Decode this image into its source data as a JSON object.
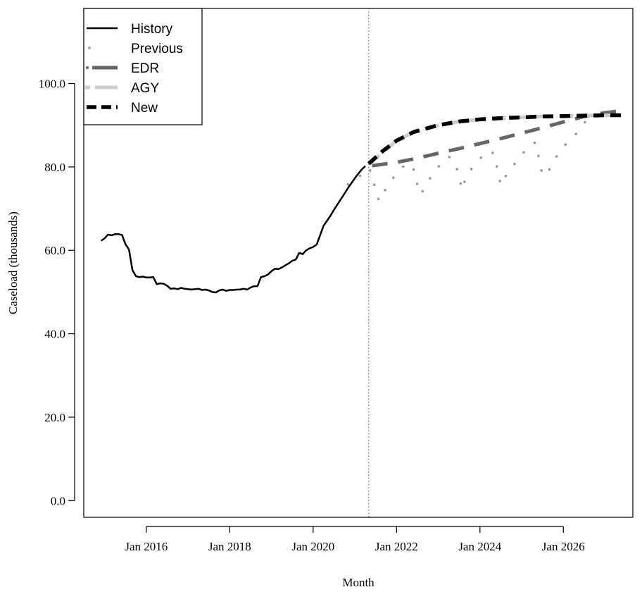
{
  "chart_data": {
    "type": "line",
    "xlabel": "Month",
    "ylabel": "Caseload (thousands)",
    "xlim": [
      "2014-07",
      "2027-09"
    ],
    "ylim": [
      -4,
      118
    ],
    "x_ticks": [
      {
        "date": "2016-01",
        "label": "Jan 2016"
      },
      {
        "date": "2018-01",
        "label": "Jan 2018"
      },
      {
        "date": "2020-01",
        "label": "Jan 2020"
      },
      {
        "date": "2022-01",
        "label": "Jan 2022"
      },
      {
        "date": "2024-01",
        "label": "Jan 2024"
      },
      {
        "date": "2026-01",
        "label": "Jan 2026"
      }
    ],
    "y_ticks": [
      {
        "value": 0,
        "label": "0.0"
      },
      {
        "value": 20,
        "label": "20.0"
      },
      {
        "value": 40,
        "label": "40.0"
      },
      {
        "value": 60,
        "label": "60.0"
      },
      {
        "value": 80,
        "label": "80.0"
      },
      {
        "value": 100,
        "label": "100.0"
      }
    ],
    "reference_line": {
      "x": "2021-05",
      "style": "dotted"
    },
    "legend": {
      "placement": "top-left"
    },
    "series": [
      {
        "name": "History",
        "style": "solid",
        "color": "#000000",
        "points": [
          [
            "2014-12",
            62.3
          ],
          [
            "2015-01",
            62.9
          ],
          [
            "2015-02",
            63.8
          ],
          [
            "2015-03",
            63.6
          ],
          [
            "2015-04",
            63.9
          ],
          [
            "2015-05",
            63.9
          ],
          [
            "2015-06",
            63.7
          ],
          [
            "2015-07",
            61.5
          ],
          [
            "2015-08",
            60.2
          ],
          [
            "2015-09",
            55.3
          ],
          [
            "2015-10",
            53.8
          ],
          [
            "2015-11",
            53.6
          ],
          [
            "2015-12",
            53.7
          ],
          [
            "2016-01",
            53.5
          ],
          [
            "2016-02",
            53.5
          ],
          [
            "2016-03",
            53.6
          ],
          [
            "2016-04",
            51.9
          ],
          [
            "2016-05",
            52.1
          ],
          [
            "2016-06",
            52.0
          ],
          [
            "2016-07",
            51.5
          ],
          [
            "2016-08",
            50.8
          ],
          [
            "2016-09",
            50.9
          ],
          [
            "2016-10",
            50.7
          ],
          [
            "2016-11",
            51.0
          ],
          [
            "2016-12",
            50.8
          ],
          [
            "2017-01",
            50.7
          ],
          [
            "2017-02",
            50.6
          ],
          [
            "2017-03",
            50.7
          ],
          [
            "2017-04",
            50.8
          ],
          [
            "2017-05",
            50.5
          ],
          [
            "2017-06",
            50.6
          ],
          [
            "2017-07",
            50.4
          ],
          [
            "2017-08",
            50.0
          ],
          [
            "2017-09",
            49.9
          ],
          [
            "2017-10",
            50.4
          ],
          [
            "2017-11",
            50.6
          ],
          [
            "2017-12",
            50.3
          ],
          [
            "2018-01",
            50.5
          ],
          [
            "2018-02",
            50.5
          ],
          [
            "2018-03",
            50.6
          ],
          [
            "2018-04",
            50.6
          ],
          [
            "2018-05",
            50.8
          ],
          [
            "2018-06",
            50.6
          ],
          [
            "2018-07",
            51.1
          ],
          [
            "2018-08",
            51.4
          ],
          [
            "2018-09",
            51.4
          ],
          [
            "2018-10",
            53.6
          ],
          [
            "2018-11",
            53.8
          ],
          [
            "2018-12",
            54.2
          ],
          [
            "2019-01",
            55.0
          ],
          [
            "2019-02",
            55.6
          ],
          [
            "2019-03",
            55.5
          ],
          [
            "2019-04",
            55.9
          ],
          [
            "2019-05",
            56.4
          ],
          [
            "2019-06",
            56.9
          ],
          [
            "2019-07",
            57.5
          ],
          [
            "2019-08",
            57.8
          ],
          [
            "2019-09",
            59.4
          ],
          [
            "2019-10",
            59.1
          ],
          [
            "2019-11",
            60.0
          ],
          [
            "2019-12",
            60.5
          ],
          [
            "2020-01",
            60.8
          ],
          [
            "2020-02",
            61.4
          ],
          [
            "2020-03",
            63.6
          ],
          [
            "2020-04",
            65.9
          ],
          [
            "2020-05",
            67.1
          ],
          [
            "2020-06",
            68.3
          ],
          [
            "2020-07",
            69.7
          ],
          [
            "2020-08",
            71.0
          ],
          [
            "2020-09",
            72.3
          ],
          [
            "2020-10",
            73.6
          ],
          [
            "2020-11",
            74.9
          ],
          [
            "2020-12",
            76.1
          ],
          [
            "2021-01",
            77.3
          ],
          [
            "2021-02",
            78.4
          ],
          [
            "2021-03",
            79.4
          ],
          [
            "2021-04",
            80.2
          ]
        ]
      },
      {
        "name": "Previous",
        "style": "dotted",
        "color": "#999999",
        "points": [
          [
            "2020-11",
            75.8
          ],
          [
            "2021-02",
            77.5
          ],
          [
            "2021-05",
            79.8
          ],
          [
            "2021-06",
            78.1
          ],
          [
            "2021-07",
            74.2
          ],
          [
            "2021-08",
            71.8
          ],
          [
            "2021-10",
            74.9
          ],
          [
            "2022-01",
            78.5
          ],
          [
            "2022-04",
            81.0
          ],
          [
            "2022-06",
            79.3
          ],
          [
            "2022-07",
            75.8
          ],
          [
            "2022-08",
            73.4
          ],
          [
            "2022-10",
            76.5
          ],
          [
            "2023-01",
            80.0
          ],
          [
            "2023-04",
            82.5
          ],
          [
            "2023-06",
            81.0
          ],
          [
            "2023-07",
            77.3
          ],
          [
            "2023-08",
            74.5
          ],
          [
            "2023-09",
            77.9
          ],
          [
            "2023-12",
            81.0
          ],
          [
            "2024-03",
            83.8
          ],
          [
            "2024-05",
            83.3
          ],
          [
            "2024-06",
            79.4
          ],
          [
            "2024-07",
            75.6
          ],
          [
            "2024-09",
            78.7
          ],
          [
            "2024-12",
            81.8
          ],
          [
            "2025-03",
            85.0
          ],
          [
            "2025-05",
            85.9
          ],
          [
            "2025-06",
            82.0
          ],
          [
            "2025-07",
            77.9
          ],
          [
            "2025-08",
            78.3
          ],
          [
            "2025-09",
            79.4
          ],
          [
            "2025-11",
            82.5
          ],
          [
            "2026-02",
            85.8
          ],
          [
            "2026-05",
            88.2
          ],
          [
            "2026-08",
            91.6
          ],
          [
            "2026-11",
            92.4
          ],
          [
            "2027-02",
            92.9
          ]
        ]
      },
      {
        "name": "EDR",
        "style": "dashed",
        "color": "#666666",
        "points": [
          [
            "2021-06",
            80.3
          ],
          [
            "2022-01",
            81.1
          ],
          [
            "2022-07",
            82.1
          ],
          [
            "2023-01",
            83.3
          ],
          [
            "2023-07",
            84.4
          ],
          [
            "2024-01",
            85.6
          ],
          [
            "2024-07",
            86.8
          ],
          [
            "2025-01",
            88.1
          ],
          [
            "2025-07",
            89.4
          ],
          [
            "2026-01",
            90.8
          ],
          [
            "2026-07",
            92.1
          ],
          [
            "2027-01",
            93.0
          ],
          [
            "2027-06",
            93.5
          ]
        ]
      },
      {
        "name": "AGY",
        "style": "dashed",
        "color": "#cccccc",
        "points": [
          [
            "2021-05",
            80.6
          ],
          [
            "2021-09",
            83.5
          ],
          [
            "2022-01",
            86.3
          ],
          [
            "2022-06",
            88.4
          ],
          [
            "2023-01",
            90.0
          ],
          [
            "2023-07",
            90.9
          ],
          [
            "2024-01",
            91.4
          ],
          [
            "2024-07",
            91.7
          ],
          [
            "2025-01",
            91.9
          ],
          [
            "2025-07",
            92.1
          ],
          [
            "2026-01",
            92.2
          ],
          [
            "2026-07",
            92.3
          ],
          [
            "2027-01",
            92.4
          ],
          [
            "2027-06",
            92.4
          ]
        ]
      },
      {
        "name": "New",
        "style": "dashed",
        "color": "#000000",
        "points": [
          [
            "2021-05",
            80.8
          ],
          [
            "2021-09",
            83.8
          ],
          [
            "2022-01",
            86.3
          ],
          [
            "2022-06",
            88.4
          ],
          [
            "2023-01",
            90.0
          ],
          [
            "2023-07",
            90.9
          ],
          [
            "2024-01",
            91.4
          ],
          [
            "2024-07",
            91.7
          ],
          [
            "2025-01",
            91.9
          ],
          [
            "2025-07",
            92.1
          ],
          [
            "2026-01",
            92.2
          ],
          [
            "2026-07",
            92.3
          ],
          [
            "2027-01",
            92.4
          ],
          [
            "2027-07",
            92.4
          ]
        ]
      }
    ]
  }
}
